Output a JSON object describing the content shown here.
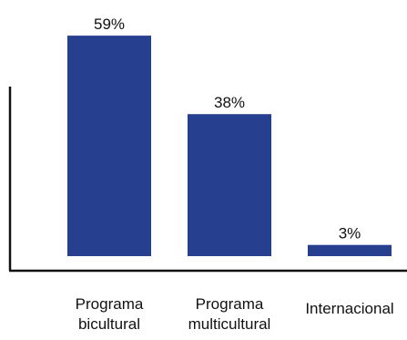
{
  "chart_data": {
    "type": "bar",
    "categories": [
      [
        "Programa",
        "bicultural"
      ],
      [
        "Programa",
        "multicultural"
      ],
      [
        "Internacional"
      ]
    ],
    "values": [
      59,
      38,
      3
    ],
    "value_labels": [
      "59%",
      "38%",
      "3%"
    ],
    "unit": "%",
    "ylim": [
      0,
      60
    ],
    "grid": false,
    "title": "",
    "xlabel": "",
    "ylabel": "",
    "colors": {
      "bar": "#263f8e",
      "axis": "#111111",
      "text": "#111111"
    }
  }
}
